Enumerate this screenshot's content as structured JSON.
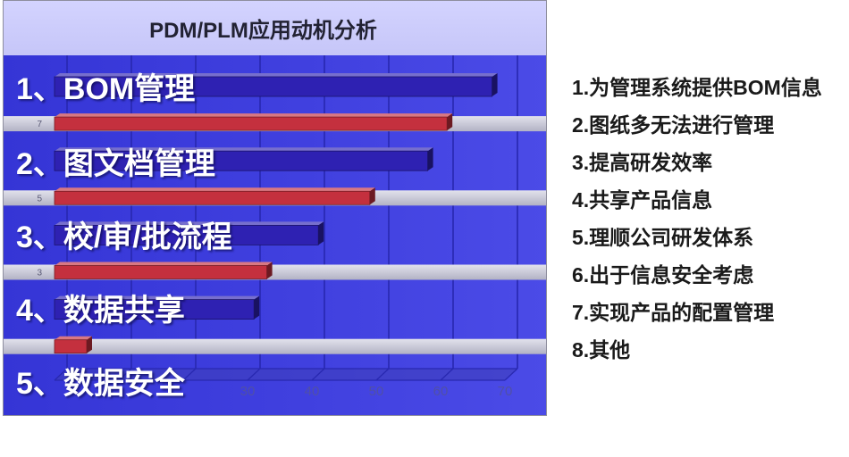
{
  "slide": {
    "title": "PDM/PLM应用动机分析"
  },
  "overlay_labels": [
    "1、BOM管理",
    "2、图文档管理",
    "3、校/审/批流程",
    "4、数据共享",
    "5、数据安全"
  ],
  "reasons": [
    "1.为管理系统提供BOM信息",
    "2.图纸多无法进行管理",
    "3.提高研发效率",
    "4.共享产品信息",
    "5.理顺公司研发体系",
    "6.出于信息安全考虑",
    "7.实现产品的配置管理",
    "8.其他"
  ],
  "colors": {
    "title_bg": "#c9c9fb",
    "chart_bg": "#3d3de0",
    "grid": "#2828b0",
    "band": "#c6c6d4",
    "tick_text": "#5050a6",
    "category_text": "#5a5a76",
    "overlay_text": "#ffffff",
    "list_text": "#1a1a1a"
  },
  "chart_data": {
    "type": "bar",
    "orientation": "horizontal",
    "three_d": true,
    "categories": [
      "",
      "7",
      "",
      "5",
      "",
      "3",
      "",
      ""
    ],
    "values": [
      68,
      61,
      58,
      49,
      41,
      33,
      31,
      5
    ],
    "bar_colors": [
      "#2e21b2",
      "#c4303e",
      "#2e21b2",
      "#c4303e",
      "#2e21b2",
      "#c4303e",
      "#2e21b2",
      "#c4303e"
    ],
    "xlim": [
      0,
      70
    ],
    "xticks": [
      30,
      40,
      50,
      60,
      70
    ],
    "grid": true
  }
}
